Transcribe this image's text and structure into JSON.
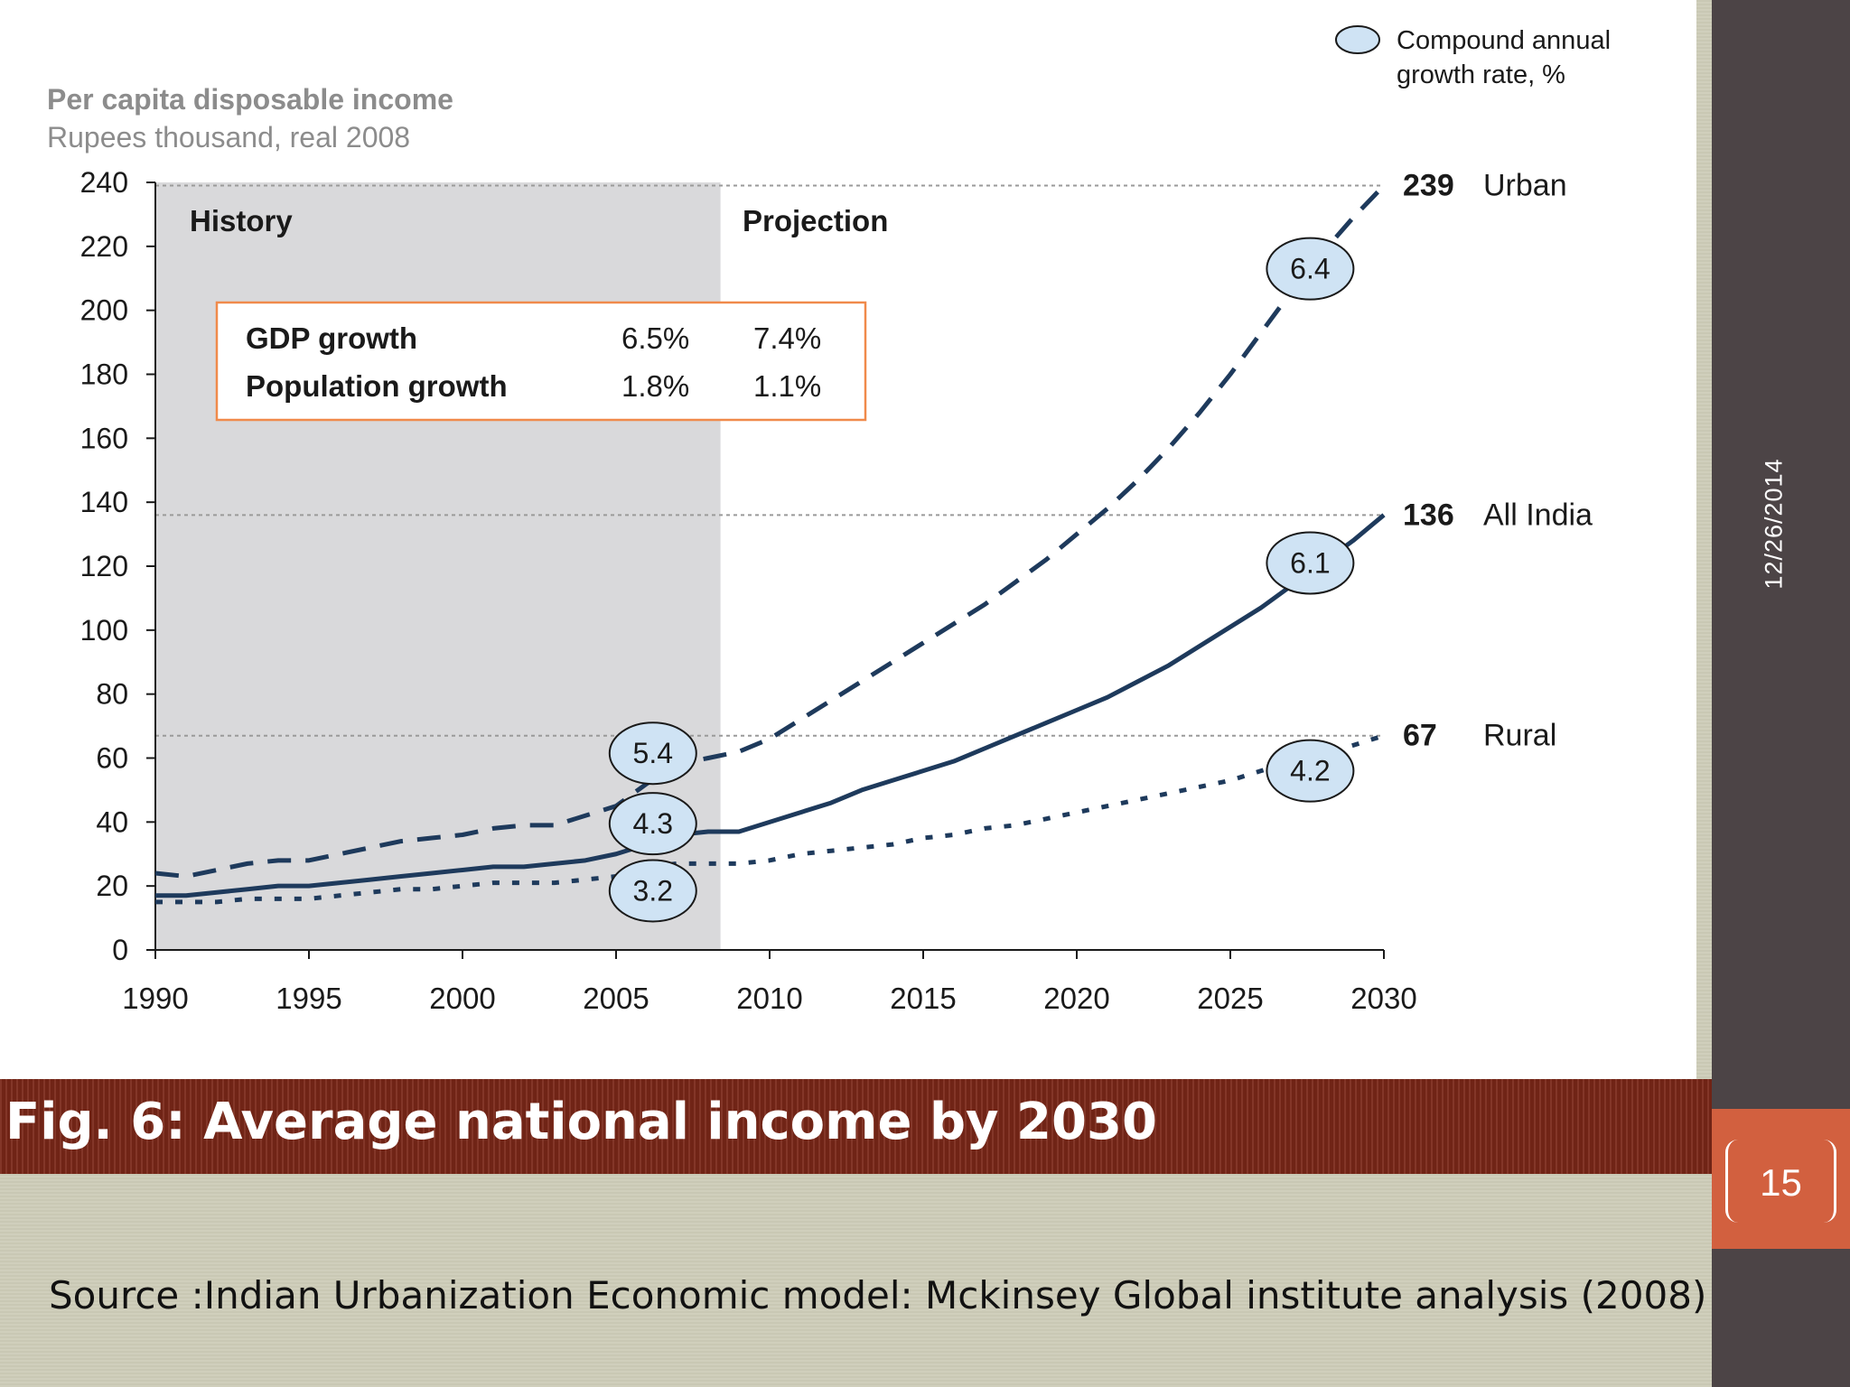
{
  "slide": {
    "figure_title": "Fig. 6: Average national income by 2030",
    "source": "Source :Indian Urbanization Economic model: Mckinsey Global institute analysis (2008)",
    "date": "12/26/2014",
    "page_number": "15",
    "colors": {
      "line": "#1e3a5c",
      "bubble_fill": "#cfe3f4",
      "history_shade": "#d9d9db",
      "title_band": "#7a2718",
      "page_tab": "#d2603f",
      "rail": "#4c4446",
      "box_border": "#f08a4b"
    }
  },
  "chart_data": {
    "type": "line",
    "title": "Per capita disposable income",
    "subtitle": "Rupees thousand, real 2008",
    "xlabel": "",
    "ylabel": "",
    "xlim": [
      1990,
      2030
    ],
    "ylim": [
      0,
      240
    ],
    "x_ticks": [
      "1990",
      "1995",
      "2000",
      "2005",
      "2010",
      "2015",
      "2020",
      "2025",
      "2030"
    ],
    "y_ticks": [
      "0",
      "20",
      "40",
      "60",
      "80",
      "100",
      "120",
      "140",
      "160",
      "180",
      "200",
      "220",
      "240"
    ],
    "grid": false,
    "regions": [
      {
        "label": "History",
        "from": 1990,
        "to": 2008.4
      },
      {
        "label": "Projection",
        "from": 2008.4,
        "to": 2030
      }
    ],
    "legend": {
      "label_line1": "Compound annual",
      "label_line2": "growth rate, %",
      "position": "top-right"
    },
    "growth_table": {
      "rows": [
        {
          "label": "GDP growth",
          "history": "6.5%",
          "projection": "7.4%"
        },
        {
          "label": "Population growth",
          "history": "1.8%",
          "projection": "1.1%"
        }
      ]
    },
    "series": [
      {
        "name": "Urban",
        "style": "dashed",
        "end_label": "239",
        "x": [
          1990,
          1991,
          1992,
          1993,
          1994,
          1995,
          1996,
          1997,
          1998,
          1999,
          2000,
          2001,
          2002,
          2003,
          2004,
          2005,
          2006,
          2007,
          2008,
          2009,
          2010,
          2011,
          2012,
          2013,
          2014,
          2015,
          2016,
          2017,
          2018,
          2019,
          2020,
          2021,
          2022,
          2023,
          2024,
          2025,
          2026,
          2027,
          2028,
          2029,
          2030
        ],
        "values": [
          24,
          23,
          25,
          27,
          28,
          28,
          30,
          32,
          34,
          35,
          36,
          38,
          39,
          39,
          42,
          45,
          52,
          58,
          60,
          62,
          66,
          72,
          78,
          84,
          90,
          96,
          102,
          108,
          115,
          122,
          130,
          138,
          147,
          157,
          168,
          180,
          193,
          206,
          218,
          229,
          239
        ],
        "growth_history": "5.4",
        "growth_projection": "6.4"
      },
      {
        "name": "All India",
        "style": "solid",
        "end_label": "136",
        "x": [
          1990,
          1991,
          1992,
          1993,
          1994,
          1995,
          1996,
          1997,
          1998,
          1999,
          2000,
          2001,
          2002,
          2003,
          2004,
          2005,
          2006,
          2007,
          2008,
          2009,
          2010,
          2011,
          2012,
          2013,
          2014,
          2015,
          2016,
          2017,
          2018,
          2019,
          2020,
          2021,
          2022,
          2023,
          2024,
          2025,
          2026,
          2027,
          2028,
          2029,
          2030
        ],
        "values": [
          17,
          17,
          18,
          19,
          20,
          20,
          21,
          22,
          23,
          24,
          25,
          26,
          26,
          27,
          28,
          30,
          33,
          36,
          37,
          37,
          40,
          43,
          46,
          50,
          53,
          56,
          59,
          63,
          67,
          71,
          75,
          79,
          84,
          89,
          95,
          101,
          107,
          114,
          121,
          128,
          136
        ],
        "growth_history": "4.3",
        "growth_projection": "6.1"
      },
      {
        "name": "Rural",
        "style": "dotted",
        "end_label": "67",
        "x": [
          1990,
          1991,
          1992,
          1993,
          1994,
          1995,
          1996,
          1997,
          1998,
          1999,
          2000,
          2001,
          2002,
          2003,
          2004,
          2005,
          2006,
          2007,
          2008,
          2009,
          2010,
          2011,
          2012,
          2013,
          2014,
          2015,
          2016,
          2017,
          2018,
          2019,
          2020,
          2021,
          2022,
          2023,
          2024,
          2025,
          2026,
          2027,
          2028,
          2029,
          2030
        ],
        "values": [
          15,
          15,
          15,
          16,
          16,
          16,
          17,
          18,
          19,
          19,
          20,
          21,
          21,
          21,
          22,
          23,
          26,
          27,
          27,
          27,
          28,
          30,
          31,
          32,
          33,
          35,
          36,
          38,
          39,
          41,
          43,
          45,
          47,
          49,
          51,
          53,
          56,
          59,
          61,
          64,
          67
        ],
        "growth_history": "3.2",
        "growth_projection": "4.2"
      }
    ]
  }
}
